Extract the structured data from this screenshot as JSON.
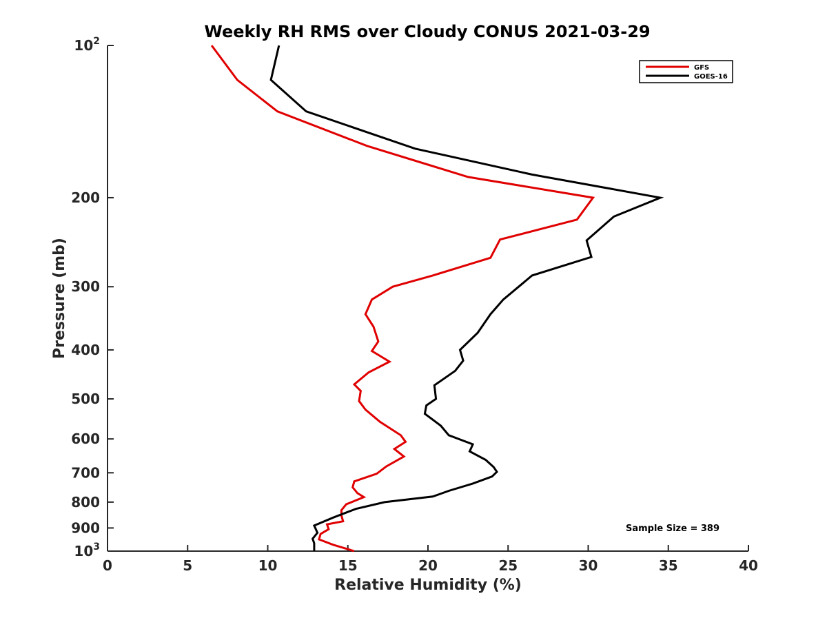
{
  "chart_data": {
    "type": "line",
    "title": "Weekly RH RMS over Cloudy CONUS 2021-03-29",
    "xlabel": "Relative Humidity (%)",
    "ylabel": "Pressure (mb)",
    "xlim": [
      0,
      40
    ],
    "ylim": [
      100,
      1000
    ],
    "y_scale": "log",
    "y_reversed": true,
    "x_ticks": [
      "0",
      "5",
      "10",
      "15",
      "20",
      "25",
      "30",
      "35",
      "40"
    ],
    "y_ticks": [
      {
        "value": 100,
        "base": "10",
        "exp": "2"
      },
      {
        "value": 200,
        "label": "200"
      },
      {
        "value": 300,
        "label": "300"
      },
      {
        "value": 400,
        "label": "400"
      },
      {
        "value": 500,
        "label": "500"
      },
      {
        "value": 600,
        "label": "600"
      },
      {
        "value": 700,
        "label": "700"
      },
      {
        "value": 800,
        "label": "800"
      },
      {
        "value": 900,
        "label": "900"
      },
      {
        "value": 1000,
        "base": "10",
        "exp": "3"
      }
    ],
    "grid": false,
    "legend_position": "top-right",
    "annotation": "Sample Size = 389",
    "series": [
      {
        "name": "GFS",
        "color": "#e00000",
        "points": [
          {
            "x": 6.5,
            "p": 100
          },
          {
            "x": 8.1,
            "p": 117
          },
          {
            "x": 10.6,
            "p": 135
          },
          {
            "x": 16.2,
            "p": 158
          },
          {
            "x": 22.5,
            "p": 182
          },
          {
            "x": 30.3,
            "p": 200
          },
          {
            "x": 29.3,
            "p": 221
          },
          {
            "x": 24.5,
            "p": 242
          },
          {
            "x": 23.9,
            "p": 263
          },
          {
            "x": 20.3,
            "p": 285
          },
          {
            "x": 17.8,
            "p": 300
          },
          {
            "x": 16.5,
            "p": 318
          },
          {
            "x": 16.1,
            "p": 340
          },
          {
            "x": 16.6,
            "p": 360
          },
          {
            "x": 16.9,
            "p": 385
          },
          {
            "x": 16.5,
            "p": 402
          },
          {
            "x": 17.6,
            "p": 422
          },
          {
            "x": 16.3,
            "p": 443
          },
          {
            "x": 15.4,
            "p": 468
          },
          {
            "x": 15.8,
            "p": 482
          },
          {
            "x": 15.7,
            "p": 505
          },
          {
            "x": 16.1,
            "p": 525
          },
          {
            "x": 17.0,
            "p": 555
          },
          {
            "x": 18.3,
            "p": 590
          },
          {
            "x": 18.6,
            "p": 608
          },
          {
            "x": 17.9,
            "p": 628
          },
          {
            "x": 18.5,
            "p": 650
          },
          {
            "x": 17.4,
            "p": 680
          },
          {
            "x": 16.8,
            "p": 703
          },
          {
            "x": 15.4,
            "p": 728
          },
          {
            "x": 15.3,
            "p": 748
          },
          {
            "x": 15.6,
            "p": 768
          },
          {
            "x": 16.0,
            "p": 782
          },
          {
            "x": 14.9,
            "p": 808
          },
          {
            "x": 14.6,
            "p": 830
          },
          {
            "x": 14.6,
            "p": 850
          },
          {
            "x": 14.7,
            "p": 873
          },
          {
            "x": 13.7,
            "p": 885
          },
          {
            "x": 13.8,
            "p": 905
          },
          {
            "x": 13.3,
            "p": 925
          },
          {
            "x": 13.2,
            "p": 948
          },
          {
            "x": 14.1,
            "p": 972
          },
          {
            "x": 15.4,
            "p": 1000
          }
        ]
      },
      {
        "name": "GOES-16",
        "color": "#000000",
        "points": [
          {
            "x": 10.7,
            "p": 100
          },
          {
            "x": 10.2,
            "p": 117
          },
          {
            "x": 12.4,
            "p": 135
          },
          {
            "x": 19.2,
            "p": 160
          },
          {
            "x": 26.5,
            "p": 180
          },
          {
            "x": 34.5,
            "p": 200
          },
          {
            "x": 31.6,
            "p": 218
          },
          {
            "x": 29.9,
            "p": 243
          },
          {
            "x": 30.2,
            "p": 262
          },
          {
            "x": 26.5,
            "p": 285
          },
          {
            "x": 24.7,
            "p": 318
          },
          {
            "x": 23.9,
            "p": 340
          },
          {
            "x": 23.1,
            "p": 370
          },
          {
            "x": 22.0,
            "p": 400
          },
          {
            "x": 22.2,
            "p": 420
          },
          {
            "x": 21.7,
            "p": 440
          },
          {
            "x": 20.4,
            "p": 470
          },
          {
            "x": 20.5,
            "p": 500
          },
          {
            "x": 19.9,
            "p": 515
          },
          {
            "x": 19.8,
            "p": 535
          },
          {
            "x": 20.8,
            "p": 565
          },
          {
            "x": 21.3,
            "p": 590
          },
          {
            "x": 22.8,
            "p": 615
          },
          {
            "x": 22.6,
            "p": 635
          },
          {
            "x": 23.6,
            "p": 660
          },
          {
            "x": 24.1,
            "p": 682
          },
          {
            "x": 24.3,
            "p": 697
          },
          {
            "x": 24.0,
            "p": 712
          },
          {
            "x": 22.8,
            "p": 735
          },
          {
            "x": 21.3,
            "p": 760
          },
          {
            "x": 20.3,
            "p": 780
          },
          {
            "x": 17.3,
            "p": 800
          },
          {
            "x": 15.5,
            "p": 825
          },
          {
            "x": 14.1,
            "p": 858
          },
          {
            "x": 12.9,
            "p": 890
          },
          {
            "x": 13.1,
            "p": 920
          },
          {
            "x": 12.8,
            "p": 945
          },
          {
            "x": 12.9,
            "p": 965
          },
          {
            "x": 12.9,
            "p": 1000
          }
        ]
      }
    ]
  }
}
